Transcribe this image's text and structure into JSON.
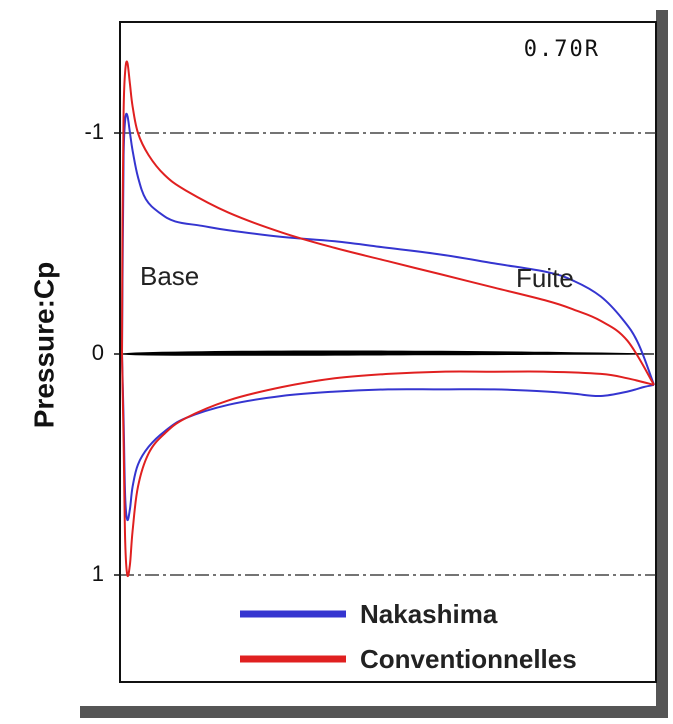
{
  "chart_data": {
    "type": "line",
    "title": "0.70R",
    "ylabel": "Pressure:Cp",
    "xlabel": "",
    "ylim": [
      1.5,
      -1.5
    ],
    "yticks": [
      "-1",
      "0",
      "1"
    ],
    "x_range": [
      0,
      1
    ],
    "annotations": {
      "leading_edge": "Base",
      "trailing_edge": "Fuite"
    },
    "reference_lines": [
      -1,
      1
    ],
    "legend": {
      "placement": "bottom-right"
    },
    "series": [
      {
        "name": "Nakashima",
        "color": "#3535d0",
        "upper": {
          "x": [
            0.0,
            0.0015,
            0.003,
            0.006,
            0.01,
            0.015,
            0.02,
            0.03,
            0.045,
            0.07,
            0.1,
            0.15,
            0.2,
            0.3,
            0.4,
            0.5,
            0.6,
            0.7,
            0.8,
            0.85,
            0.9,
            0.94,
            0.97,
            1.0
          ],
          "cp": [
            0.0,
            -0.5,
            -0.9,
            -1.06,
            -1.08,
            -1.0,
            -0.92,
            -0.8,
            -0.7,
            -0.64,
            -0.6,
            -0.58,
            -0.56,
            -0.53,
            -0.51,
            -0.48,
            -0.45,
            -0.41,
            -0.37,
            -0.33,
            -0.26,
            -0.16,
            -0.05,
            0.14
          ]
        },
        "lower": {
          "x": [
            0.0,
            0.003,
            0.006,
            0.01,
            0.015,
            0.02,
            0.03,
            0.05,
            0.08,
            0.12,
            0.2,
            0.3,
            0.4,
            0.5,
            0.6,
            0.7,
            0.8,
            0.85,
            0.9,
            0.95,
            0.98,
            1.0
          ],
          "cp": [
            0.0,
            0.3,
            0.65,
            0.75,
            0.7,
            0.6,
            0.5,
            0.42,
            0.35,
            0.29,
            0.23,
            0.19,
            0.17,
            0.16,
            0.16,
            0.16,
            0.17,
            0.18,
            0.19,
            0.17,
            0.15,
            0.14
          ]
        }
      },
      {
        "name": "Conventionnelles",
        "color": "#e02020",
        "upper": {
          "x": [
            0.0,
            0.001,
            0.003,
            0.006,
            0.01,
            0.015,
            0.02,
            0.03,
            0.05,
            0.08,
            0.12,
            0.2,
            0.3,
            0.4,
            0.5,
            0.6,
            0.7,
            0.8,
            0.85,
            0.9,
            0.95,
            1.0
          ],
          "cp": [
            0.0,
            -0.6,
            -1.1,
            -1.28,
            -1.32,
            -1.22,
            -1.12,
            -1.0,
            -0.9,
            -0.81,
            -0.74,
            -0.64,
            -0.55,
            -0.48,
            -0.42,
            -0.36,
            -0.3,
            -0.24,
            -0.2,
            -0.15,
            -0.06,
            0.14
          ]
        },
        "lower": {
          "x": [
            0.0,
            0.003,
            0.006,
            0.01,
            0.015,
            0.02,
            0.03,
            0.05,
            0.08,
            0.12,
            0.2,
            0.3,
            0.4,
            0.5,
            0.6,
            0.7,
            0.8,
            0.9,
            0.95,
            1.0
          ],
          "cp": [
            0.0,
            0.4,
            0.85,
            1.0,
            0.95,
            0.8,
            0.6,
            0.45,
            0.36,
            0.29,
            0.21,
            0.15,
            0.11,
            0.09,
            0.08,
            0.08,
            0.08,
            0.09,
            0.11,
            0.14
          ]
        }
      }
    ]
  }
}
